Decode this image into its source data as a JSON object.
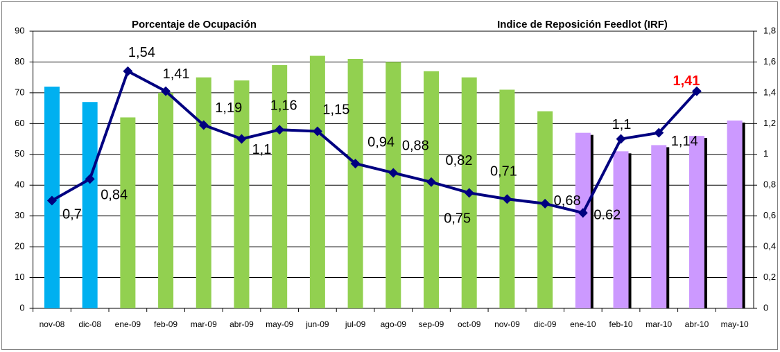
{
  "chart_data": {
    "type": "bar_line",
    "titles": [
      "Porcentaje de Ocupación",
      "Indice de Reposición Feedlot (IRF)"
    ],
    "categories": [
      "nov-08",
      "dic-08",
      "ene-09",
      "feb-09",
      "mar-09",
      "abr-09",
      "may-09",
      "jun-09",
      "jul-09",
      "ago-09",
      "sep-09",
      "oct-09",
      "nov-09",
      "dic-09",
      "ene-10",
      "feb-10",
      "mar-10",
      "abr-10",
      "may-10"
    ],
    "series": [
      {
        "type": "bar",
        "values": [
          72,
          67,
          62,
          70,
          75,
          74,
          79,
          82,
          81,
          80,
          77,
          75,
          71,
          64,
          57,
          51,
          53,
          56,
          61
        ],
        "colors": [
          "#00b0f0",
          "#00b0f0",
          "#92d050",
          "#92d050",
          "#92d050",
          "#92d050",
          "#92d050",
          "#92d050",
          "#92d050",
          "#92d050",
          "#92d050",
          "#92d050",
          "#92d050",
          "#92d050",
          "#cc99ff",
          "#cc99ff",
          "#cc99ff",
          "#cc99ff",
          "#cc99ff"
        ],
        "shadows": [
          false,
          false,
          false,
          false,
          false,
          false,
          false,
          false,
          false,
          false,
          false,
          false,
          false,
          false,
          true,
          true,
          true,
          true,
          true
        ],
        "shadow_color": "#000000"
      },
      {
        "type": "line",
        "axis": "y2",
        "color": "#000080",
        "values": [
          0.7,
          0.84,
          1.54,
          1.41,
          1.19,
          1.1,
          1.16,
          1.15,
          0.94,
          0.88,
          0.82,
          0.75,
          0.71,
          0.68,
          0.62,
          1.1,
          1.14,
          1.41,
          null
        ],
        "value_labels": [
          "0,7",
          "0,84",
          "1,54",
          "1,41",
          "1,19",
          "1,1",
          "1,16",
          "1,15",
          "0,94",
          "0,88",
          "0,82",
          "0,75",
          "0,71",
          "0,68",
          "0.62",
          "1,1",
          "1,14",
          "1,41",
          null
        ],
        "label_colors": [
          "#000000",
          "#000000",
          "#000000",
          "#000000",
          "#000000",
          "#000000",
          "#000000",
          "#000000",
          "#000000",
          "#000000",
          "#000000",
          "#000000",
          "#000000",
          "#000000",
          "#000000",
          "#000000",
          "#000000",
          "#ff0000",
          null
        ]
      }
    ],
    "ylim": [
      0,
      90
    ],
    "yticks": [
      0,
      10,
      20,
      30,
      40,
      50,
      60,
      70,
      80,
      90
    ],
    "y2lim": [
      0,
      1.8
    ],
    "y2ticks": [
      0,
      {
        "value": 0.2,
        "label": "0,2"
      },
      {
        "value": 0.4,
        "label": "0,4"
      },
      {
        "value": 0.6,
        "label": "0,6"
      },
      {
        "value": 0.8,
        "label": "0,8"
      },
      1,
      {
        "value": 1.2,
        "label": "1,2"
      },
      {
        "value": 1.4,
        "label": "1,4"
      },
      {
        "value": 1.6,
        "label": "1,6"
      },
      {
        "value": 1.8,
        "label": "1,8"
      }
    ],
    "grid": true
  }
}
